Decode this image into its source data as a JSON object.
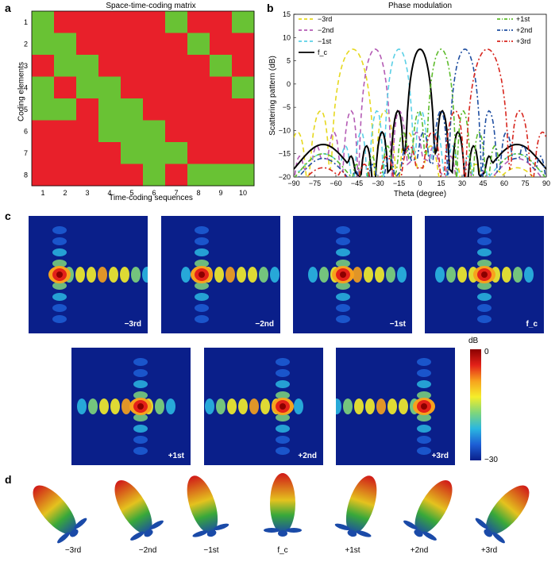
{
  "panel_labels": {
    "a": "a",
    "b": "b",
    "c": "c",
    "d": "d"
  },
  "colors": {
    "coding_0": "#e8202a",
    "coding_1": "#69c234",
    "farfield_bg": "#0a1f8a"
  },
  "matrix": {
    "title": "Space-time-coding matrix",
    "xlabel": "Time-coding sequences",
    "ylabel": "Coding elements",
    "x_ticks": [
      "1",
      "2",
      "3",
      "4",
      "5",
      "6",
      "7",
      "8",
      "9",
      "10"
    ],
    "y_ticks": [
      "1",
      "2",
      "3",
      "4",
      "5",
      "6",
      "7",
      "8"
    ],
    "cells": [
      [
        1,
        0,
        0,
        0,
        0,
        0,
        1,
        0,
        0,
        1
      ],
      [
        1,
        1,
        0,
        0,
        0,
        0,
        0,
        1,
        0,
        0
      ],
      [
        0,
        1,
        1,
        0,
        0,
        0,
        0,
        0,
        1,
        0
      ],
      [
        1,
        0,
        1,
        1,
        0,
        0,
        0,
        0,
        0,
        1
      ],
      [
        1,
        1,
        0,
        1,
        1,
        0,
        0,
        0,
        0,
        0
      ],
      [
        0,
        0,
        0,
        1,
        1,
        1,
        0,
        0,
        0,
        0
      ],
      [
        0,
        0,
        0,
        0,
        1,
        1,
        1,
        0,
        0,
        0
      ],
      [
        0,
        0,
        0,
        0,
        0,
        1,
        0,
        1,
        1,
        1
      ]
    ]
  },
  "chart_data": {
    "type": "line",
    "title": "Phase modulation",
    "xlabel": "Theta (degree)",
    "ylabel": "Scattering pattern (dB)",
    "xlim": [
      -90,
      90
    ],
    "ylim": [
      -20,
      15
    ],
    "x_ticks": [
      "−90",
      "−75",
      "−60",
      "−45",
      "−30",
      "−15",
      "0",
      "15",
      "30",
      "45",
      "60",
      "75",
      "90"
    ],
    "y_ticks": [
      "−20",
      "−15",
      "−10",
      "−5",
      "0",
      "5",
      "10",
      "15"
    ],
    "legend_left": [
      "−3rd",
      "−2nd",
      "−1st",
      "f_c"
    ],
    "legend_right": [
      "+1st",
      "+2nd",
      "+3rd"
    ],
    "series": [
      {
        "name": "−3rd",
        "color": "#e6d81e",
        "dash": "6,4",
        "peak": -48,
        "width": 16,
        "side": -8
      },
      {
        "name": "−2nd",
        "color": "#b45bb4",
        "dash": "6,4",
        "peak": -32,
        "width": 12,
        "side": -6
      },
      {
        "name": "−1st",
        "color": "#5bd0e6",
        "dash": "6,4",
        "peak": -15,
        "width": 11,
        "side": -5
      },
      {
        "name": "f_c",
        "color": "#000000",
        "dash": "",
        "peak": 0,
        "width": 11,
        "side": -3
      },
      {
        "name": "+1st",
        "color": "#5dbb2b",
        "dash": "6,3,2,3",
        "peak": 15,
        "width": 11,
        "side": -5
      },
      {
        "name": "+2nd",
        "color": "#1f4ea0",
        "dash": "6,3,2,3",
        "peak": 32,
        "width": 12,
        "side": -6
      },
      {
        "name": "+3rd",
        "color": "#d7261e",
        "dash": "6,3,2,3",
        "peak": 48,
        "width": 16,
        "side": -8
      }
    ]
  },
  "farfield": {
    "colorbar_unit": "dB",
    "colorbar_max": "0",
    "colorbar_min": "−30",
    "labels": [
      "−3rd",
      "−2nd",
      "−1st",
      "f_c",
      "+1st",
      "+2nd",
      "+3rd"
    ]
  },
  "lobes": {
    "labels": [
      "−3rd",
      "−2nd",
      "−1st",
      "f_c",
      "+1st",
      "+2nd",
      "+3rd"
    ]
  }
}
